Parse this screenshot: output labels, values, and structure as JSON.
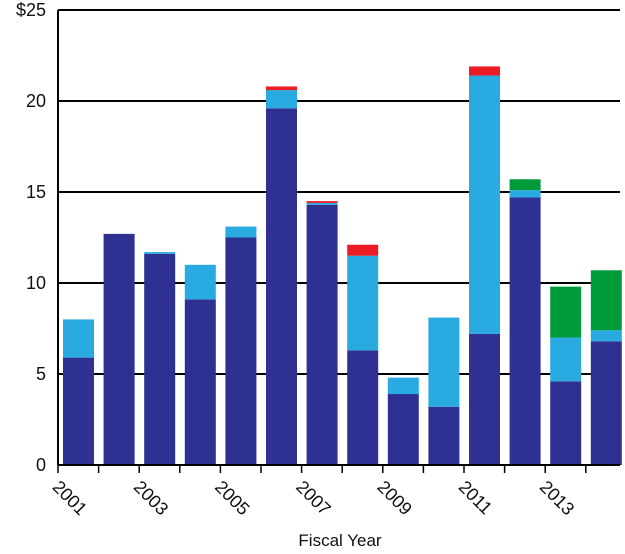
{
  "chart_data": {
    "type": "bar",
    "stacked": true,
    "title": "",
    "xlabel": "Fiscal Year",
    "ylabel": "",
    "ylim": [
      0,
      25
    ],
    "y_ticks": [
      "0",
      "5",
      "10",
      "15",
      "20",
      "$25"
    ],
    "x_tick_labels": [
      "2001",
      "2003",
      "2005",
      "2007",
      "2009",
      "2011",
      "2013"
    ],
    "grid": "horizontal",
    "legend": "none",
    "categories": [
      "2001",
      "2002",
      "2003",
      "2004",
      "2005",
      "2006",
      "2007",
      "2008",
      "2009",
      "2010",
      "2011",
      "2012",
      "2013",
      "2014"
    ],
    "series": [
      {
        "color": "#2e3192",
        "values": [
          5.9,
          12.7,
          11.6,
          9.1,
          12.5,
          19.6,
          14.3,
          6.3,
          3.9,
          3.2,
          7.2,
          14.7,
          4.6,
          6.8
        ]
      },
      {
        "color": "#29abe2",
        "values": [
          2.1,
          0,
          0.1,
          1.9,
          0.6,
          1.0,
          0.1,
          5.2,
          0.9,
          4.9,
          14.2,
          0.4,
          2.4,
          0.6
        ]
      },
      {
        "color": "#ed1c24",
        "values": [
          0,
          0,
          0,
          0,
          0,
          0.2,
          0.1,
          0.6,
          0,
          0,
          0.5,
          0,
          0,
          0
        ]
      },
      {
        "color": "#009c3b",
        "values": [
          0,
          0,
          0,
          0,
          0,
          0,
          0,
          0,
          0,
          0,
          0,
          0.6,
          2.8,
          3.3
        ]
      }
    ]
  }
}
